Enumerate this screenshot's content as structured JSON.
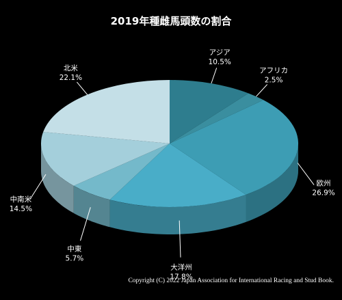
{
  "chart_data": {
    "type": "pie",
    "title": "2019年種雌馬頭数の割合",
    "slices": [
      {
        "label": "アジア",
        "value": 10.5,
        "value_label": "10.5%",
        "color": "#2e7d8e"
      },
      {
        "label": "アフリカ",
        "value": 2.5,
        "value_label": "2.5%",
        "color": "#3a8e9f"
      },
      {
        "label": "欧州",
        "value": 26.9,
        "value_label": "26.9%",
        "color": "#3d9db4"
      },
      {
        "label": "大洋州",
        "value": 17.8,
        "value_label": "17.8%",
        "color": "#49adc8"
      },
      {
        "label": "中東",
        "value": 5.7,
        "value_label": "5.7%",
        "color": "#74b9ca"
      },
      {
        "label": "中南米",
        "value": 14.5,
        "value_label": "14.5%",
        "color": "#a4cfdb"
      },
      {
        "label": "北米",
        "value": 22.1,
        "value_label": "22.1%",
        "color": "#c4dfe7"
      }
    ],
    "legend": "none",
    "view": "3d-tilted"
  },
  "footer": {
    "copyright": "Copyright (C) 2022 Japan Association for International Racing and Stud Book."
  }
}
